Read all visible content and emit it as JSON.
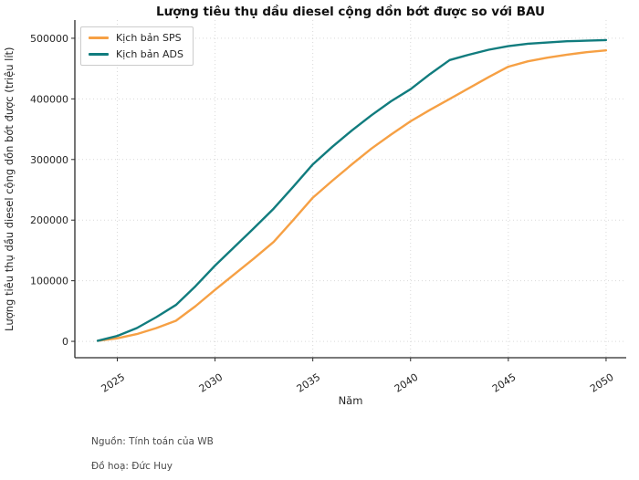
{
  "chart": {
    "title": "Lượng tiêu thụ dầu diesel cộng dồn bớt được so với BAU",
    "x_axis_title": "Năm",
    "y_axis_title": "Lượng tiêu thụ dầu diesel cộng dồn bớt được (triệu lít)"
  },
  "footer": {
    "source": "Nguồn: Tính toán của WB",
    "credit": "Đồ hoạ: Đức Huy"
  },
  "chart_data": {
    "type": "line",
    "title": "Lượng tiêu thụ dầu diesel cộng dồn bớt được so với BAU",
    "xlabel": "Năm",
    "ylabel": "Lượng tiêu thụ dầu diesel cộng dồn bớt được (triệu lít)",
    "grid": true,
    "legend_position": "upper left",
    "xlim": [
      2022.83,
      2051.03
    ],
    "ylim": [
      -27000,
      530000
    ],
    "x_ticks": [
      2025,
      2030,
      2035,
      2040,
      2045,
      2050
    ],
    "y_ticks": [
      0,
      100000,
      200000,
      300000,
      400000,
      500000
    ],
    "x": [
      2024,
      2025,
      2026,
      2027,
      2028,
      2029,
      2030,
      2031,
      2032,
      2033,
      2034,
      2035,
      2036,
      2037,
      2038,
      2039,
      2040,
      2041,
      2042,
      2043,
      2044,
      2045,
      2046,
      2047,
      2048,
      2049,
      2050
    ],
    "series": [
      {
        "name": "Kịch bản SPS",
        "color": "#f6a044",
        "values": [
          1000,
          5000,
          12000,
          22000,
          34000,
          58000,
          85000,
          111000,
          137000,
          164000,
          200000,
          237000,
          265000,
          292000,
          318000,
          341000,
          363000,
          382000,
          400000,
          418000,
          436000,
          453000,
          462000,
          468000,
          473000,
          477000,
          480000
        ]
      },
      {
        "name": "Kịch bản ADS",
        "color": "#117c7e",
        "values": [
          1000,
          9000,
          22000,
          40000,
          60000,
          91000,
          125000,
          156000,
          187000,
          219000,
          255000,
          292000,
          321000,
          348000,
          373000,
          396000,
          416000,
          441000,
          464000,
          473000,
          481000,
          487000,
          491000,
          493000,
          495000,
          496000,
          497000
        ]
      }
    ]
  }
}
